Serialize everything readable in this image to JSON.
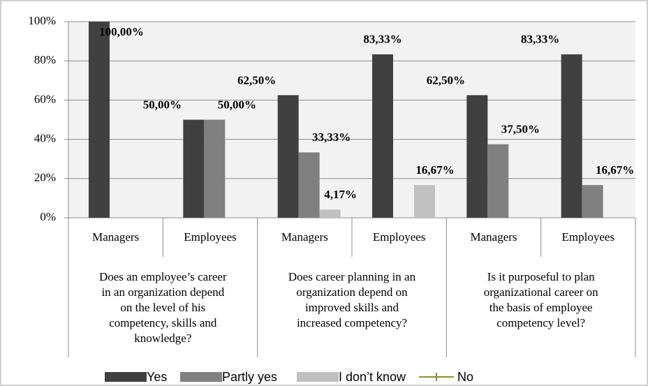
{
  "chart_data": {
    "type": "bar",
    "groups": [
      {
        "lines": [
          "Does an employee’s career",
          "in an organization depend",
          "on the level of his",
          "competency, skills and",
          "knowledge?"
        ]
      },
      {
        "lines": [
          "Does career planning in an",
          "organization depend on",
          "improved skills and",
          "increased competency?"
        ]
      },
      {
        "lines": [
          "Is it purposeful to plan",
          "organizational career on",
          "the basis of employee",
          "competency level?"
        ]
      }
    ],
    "categories": [
      "Managers",
      "Employees",
      "Managers",
      "Employees",
      "Managers",
      "Employees"
    ],
    "series": [
      {
        "name": "Yes",
        "color": "#404040",
        "values": [
          100,
          50,
          62.5,
          83.33,
          62.5,
          83.33
        ],
        "value_labels": [
          "100,00%",
          "50,00%",
          "62,50%",
          "83,33%",
          "62,50%",
          "83,33%"
        ]
      },
      {
        "name": "Partly yes",
        "color": "#808080",
        "values": [
          null,
          50,
          33.33,
          null,
          37.5,
          16.67
        ],
        "value_labels": [
          null,
          "50,00%",
          "33,33%",
          null,
          "37,50%",
          "16,67%"
        ]
      },
      {
        "name": "I don’t know",
        "color": "#c0c0c0",
        "values": [
          null,
          null,
          4.17,
          16.67,
          null,
          null
        ],
        "value_labels": [
          null,
          null,
          "4,17%",
          "16,67%",
          null,
          null
        ]
      },
      {
        "name": "No",
        "color": "#8c8c3c",
        "legend_style": "line",
        "values": [
          null,
          null,
          null,
          null,
          null,
          null
        ]
      }
    ],
    "ylim": [
      0,
      100
    ],
    "yticks": [
      {
        "value": 0,
        "label": "0%"
      },
      {
        "value": 20,
        "label": "20%"
      },
      {
        "value": 40,
        "label": "40%"
      },
      {
        "value": 60,
        "label": "60%"
      },
      {
        "value": 80,
        "label": "80%"
      },
      {
        "value": 100,
        "label": "100%"
      }
    ],
    "grid": true,
    "legend": "bottom"
  }
}
